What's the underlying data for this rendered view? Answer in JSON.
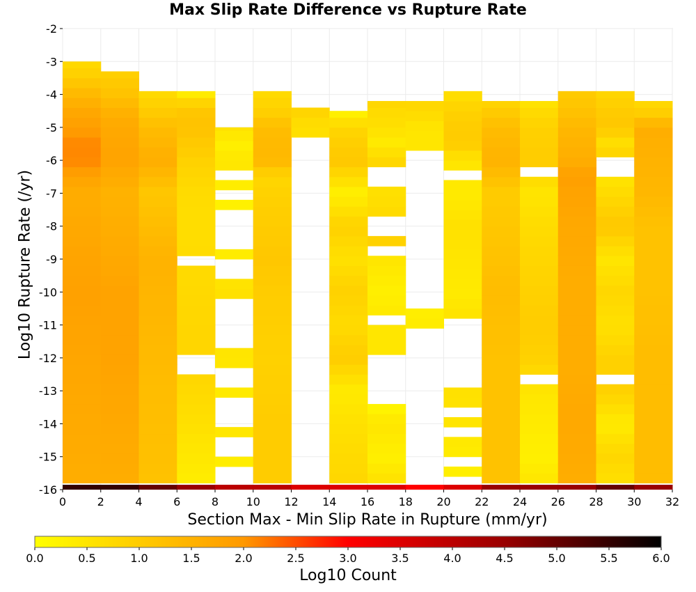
{
  "chart_data": {
    "type": "heatmap",
    "title": "Max Slip Rate Difference vs Rupture Rate",
    "xlabel": "Section Max - Min Slip Rate in Rupture (mm/yr)",
    "ylabel": "Log10 Rupture Rate (/yr)",
    "colorbar_label": "Log10 Count",
    "xlim": [
      0,
      32
    ],
    "ylim": [
      -16,
      -2
    ],
    "x_ticks": [
      "0",
      "2",
      "4",
      "6",
      "8",
      "10",
      "12",
      "14",
      "16",
      "18",
      "20",
      "22",
      "24",
      "26",
      "28",
      "30",
      "32"
    ],
    "y_ticks": [
      "-2",
      "-3",
      "-4",
      "-5",
      "-6",
      "-7",
      "-8",
      "-9",
      "-10",
      "-11",
      "-12",
      "-13",
      "-14",
      "-15",
      "-16"
    ],
    "colorbar_ticks": [
      "0.0",
      "0.5",
      "1.0",
      "1.5",
      "2.0",
      "2.5",
      "3.0",
      "3.5",
      "4.0",
      "4.5",
      "5.0",
      "5.5",
      "6.0"
    ],
    "colorbar_range": [
      0,
      6
    ],
    "x_bin_width": 2,
    "y_bin_width": 0.3,
    "bottom_row_y": -16,
    "bottom_row_values": [
      5.5,
      5.5,
      5.0,
      4.5,
      4.0,
      4.0,
      3.5,
      3.5,
      3.5,
      3.0,
      3.5,
      4.5,
      4.5,
      4.5,
      5.0,
      4.5
    ],
    "columns": [
      {
        "x": 0,
        "ymin": -15.8,
        "ymax": -3.0,
        "profile": [
          [
            -15.8,
            1.6
          ],
          [
            -13,
            1.7
          ],
          [
            -10,
            1.85
          ],
          [
            -8,
            1.7
          ],
          [
            -7,
            1.6
          ],
          [
            -6.5,
            1.8
          ],
          [
            -6,
            2.2
          ],
          [
            -5.5,
            2.2
          ],
          [
            -5,
            1.9
          ],
          [
            -4.5,
            1.7
          ],
          [
            -4,
            1.4
          ],
          [
            -3.5,
            1.0
          ],
          [
            -3.0,
            0.7
          ]
        ]
      },
      {
        "x": 2,
        "ymin": -15.8,
        "ymax": -3.3,
        "profile": [
          [
            -15.8,
            1.6
          ],
          [
            -12,
            1.8
          ],
          [
            -10,
            1.8
          ],
          [
            -8,
            1.6
          ],
          [
            -7,
            1.5
          ],
          [
            -6,
            1.8
          ],
          [
            -5,
            1.7
          ],
          [
            -4.5,
            1.5
          ],
          [
            -4,
            1.2
          ],
          [
            -3.3,
            0.9
          ]
        ]
      },
      {
        "x": 4,
        "ymin": -15.8,
        "ymax": -3.9,
        "profile": [
          [
            -15.8,
            1.2
          ],
          [
            -13,
            1.3
          ],
          [
            -11,
            1.4
          ],
          [
            -9,
            1.5
          ],
          [
            -8,
            1.3
          ],
          [
            -7,
            1.1
          ],
          [
            -6,
            1.6
          ],
          [
            -5,
            1.3
          ],
          [
            -4.5,
            1.0
          ],
          [
            -3.9,
            0.7
          ]
        ]
      },
      {
        "x": 6,
        "ymin": -15.8,
        "ymax": -3.9,
        "profile": [
          [
            -15.8,
            0.35
          ],
          [
            -14,
            0.6
          ],
          [
            -12.5,
            0.8
          ],
          [
            -11,
            0.8
          ],
          [
            -9,
            0.7
          ],
          [
            -8,
            0.65
          ],
          [
            -7,
            0.7
          ],
          [
            -6,
            0.9
          ],
          [
            -5,
            1.2
          ],
          [
            -4.5,
            1.1
          ],
          [
            -4.2,
            0.8
          ],
          [
            -3.9,
            0.2
          ]
        ],
        "gaps": [
          [
            -12.5,
            -11.9
          ],
          [
            -9.2,
            -8.9
          ]
        ]
      },
      {
        "x": 8,
        "ymin": -15.3,
        "ymax": -5.0,
        "profile": [
          [
            -15.3,
            0.3
          ],
          [
            -15,
            0.4
          ],
          [
            -14,
            0.5
          ],
          [
            -13,
            0.4
          ],
          [
            -12,
            0.5
          ],
          [
            -10,
            0.6
          ],
          [
            -9,
            0.4
          ],
          [
            -8,
            0.2
          ],
          [
            -7,
            0.3
          ],
          [
            -6,
            0.5
          ],
          [
            -5.5,
            0.3
          ],
          [
            -5,
            0.6
          ]
        ],
        "gaps": [
          [
            -15.0,
            -14.5
          ],
          [
            -14.2,
            -13.2
          ],
          [
            -12.9,
            -12.2
          ],
          [
            -11.8,
            -10.3
          ],
          [
            -10.0,
            -9.9
          ],
          [
            -9.6,
            -9.0
          ],
          [
            -8.7,
            -7.6
          ],
          [
            -7.3,
            -7.0
          ],
          [
            -6.7,
            -6.2
          ]
        ]
      },
      {
        "x": 10,
        "ymin": -15.8,
        "ymax": -3.9,
        "profile": [
          [
            -15.8,
            1.0
          ],
          [
            -14,
            1.0
          ],
          [
            -12,
            0.9
          ],
          [
            -10,
            1.0
          ],
          [
            -9,
            1.1
          ],
          [
            -8,
            1.0
          ],
          [
            -7,
            0.9
          ],
          [
            -6.5,
            0.8
          ],
          [
            -6,
            1.4
          ],
          [
            -5,
            1.3
          ],
          [
            -4.5,
            0.9
          ],
          [
            -3.9,
            0.7
          ]
        ]
      },
      {
        "x": 12,
        "ymin": -5.3,
        "ymax": -4.4,
        "profile": [
          [
            -5.3,
            0.6
          ],
          [
            -4.8,
            0.7
          ],
          [
            -4.4,
            0.9
          ]
        ]
      },
      {
        "x": 14,
        "ymin": -15.8,
        "ymax": -4.5,
        "profile": [
          [
            -15.8,
            0.8
          ],
          [
            -14,
            0.6
          ],
          [
            -13,
            0.4
          ],
          [
            -12,
            1.0
          ],
          [
            -11,
            0.7
          ],
          [
            -10,
            0.9
          ],
          [
            -9,
            0.6
          ],
          [
            -8,
            0.9
          ],
          [
            -7,
            0.3
          ],
          [
            -6,
            1.1
          ],
          [
            -5,
            0.8
          ],
          [
            -4.5,
            0.2
          ]
        ],
        "gaps": [
          [
            -9.9,
            -9.8
          ]
        ]
      },
      {
        "x": 16,
        "ymin": -15.8,
        "ymax": -4.2,
        "profile": [
          [
            -15.8,
            0.6
          ],
          [
            -15,
            0.3
          ],
          [
            -14,
            0.5
          ],
          [
            -13.5,
            0.2
          ],
          [
            -12,
            0.5
          ],
          [
            -11,
            0.5
          ],
          [
            -10,
            0.3
          ],
          [
            -9,
            0.5
          ],
          [
            -8.5,
            0.9
          ],
          [
            -7,
            0.6
          ],
          [
            -6,
            0.8
          ],
          [
            -5.5,
            0.4
          ],
          [
            -5,
            0.6
          ],
          [
            -4.2,
            0.8
          ]
        ],
        "gaps": [
          [
            -13.5,
            -11.9
          ],
          [
            -10.9,
            -10.8
          ],
          [
            -9.0,
            -8.6
          ],
          [
            -8.3,
            -7.6
          ],
          [
            -6.7,
            -6.2
          ]
        ]
      },
      {
        "x": 18,
        "ymin": -11.1,
        "ymax": -4.2,
        "profile": [
          [
            -11.1,
            0.4
          ],
          [
            -10.5,
            0.3
          ],
          [
            -5.6,
            0.5
          ],
          [
            -5,
            0.5
          ],
          [
            -4.6,
            0.7
          ],
          [
            -4.2,
            0.8
          ]
        ],
        "gaps": [
          [
            -10.4,
            -5.6
          ]
        ]
      },
      {
        "x": 20,
        "ymin": -15.6,
        "ymax": -3.9,
        "profile": [
          [
            -15.6,
            0.3
          ],
          [
            -14,
            0.5
          ],
          [
            -13,
            0.6
          ],
          [
            -12,
            0.6
          ],
          [
            -11,
            0.6
          ],
          [
            -10,
            0.4
          ],
          [
            -9,
            0.5
          ],
          [
            -8,
            0.6
          ],
          [
            -7,
            0.4
          ],
          [
            -6,
            0.5
          ],
          [
            -5.5,
            1.0
          ],
          [
            -5,
            1.0
          ],
          [
            -4.5,
            0.9
          ],
          [
            -3.9,
            0.6
          ]
        ],
        "gaps": [
          [
            -15.3,
            -15.0
          ],
          [
            -14.4,
            -14.2
          ],
          [
            -13.9,
            -13.5
          ],
          [
            -12.9,
            -10.9
          ],
          [
            -9.9,
            -9.8
          ],
          [
            -6.7,
            -6.2
          ]
        ]
      },
      {
        "x": 22,
        "ymin": -15.8,
        "ymax": -4.2,
        "profile": [
          [
            -15.8,
            1.2
          ],
          [
            -14,
            1.2
          ],
          [
            -12,
            1.2
          ],
          [
            -10,
            1.3
          ],
          [
            -8,
            1.1
          ],
          [
            -7,
            1.0
          ],
          [
            -6,
            1.5
          ],
          [
            -5,
            1.3
          ],
          [
            -4.5,
            1.0
          ],
          [
            -4.2,
            0.8
          ]
        ]
      },
      {
        "x": 24,
        "ymin": -15.8,
        "ymax": -4.2,
        "profile": [
          [
            -15.8,
            0.5
          ],
          [
            -15,
            0.3
          ],
          [
            -14,
            0.4
          ],
          [
            -13,
            0.5
          ],
          [
            -12,
            0.9
          ],
          [
            -11,
            1.0
          ],
          [
            -10,
            0.9
          ],
          [
            -9,
            0.8
          ],
          [
            -8,
            0.7
          ],
          [
            -7,
            0.5
          ],
          [
            -6,
            1.0
          ],
          [
            -5,
            0.9
          ],
          [
            -4.5,
            0.7
          ],
          [
            -4.2,
            0.5
          ]
        ],
        "gaps": [
          [
            -12.9,
            -12.6
          ],
          [
            -6.5,
            -6.2
          ],
          [
            -5.9,
            -5.8
          ]
        ]
      },
      {
        "x": 26,
        "ymin": -15.8,
        "ymax": -3.9,
        "profile": [
          [
            -15.8,
            1.6
          ],
          [
            -14,
            1.7
          ],
          [
            -12,
            1.6
          ],
          [
            -10,
            1.6
          ],
          [
            -8,
            1.7
          ],
          [
            -7,
            1.8
          ],
          [
            -6.5,
            1.9
          ],
          [
            -6,
            1.6
          ],
          [
            -5,
            1.4
          ],
          [
            -4.5,
            1.2
          ],
          [
            -3.9,
            1.0
          ]
        ]
      },
      {
        "x": 28,
        "ymin": -15.8,
        "ymax": -3.9,
        "profile": [
          [
            -15.8,
            0.6
          ],
          [
            -15,
            0.8
          ],
          [
            -14,
            0.4
          ],
          [
            -13,
            0.9
          ],
          [
            -12,
            0.9
          ],
          [
            -11,
            0.6
          ],
          [
            -10,
            0.8
          ],
          [
            -9,
            0.5
          ],
          [
            -8,
            1.1
          ],
          [
            -7,
            0.7
          ],
          [
            -6.5,
            0.5
          ],
          [
            -6,
            1.0
          ],
          [
            -5.5,
            0.6
          ],
          [
            -5,
            1.1
          ],
          [
            -4.5,
            1.0
          ],
          [
            -3.9,
            0.8
          ]
        ],
        "gaps": [
          [
            -12.9,
            -12.6
          ],
          [
            -6.5,
            -5.9
          ]
        ]
      },
      {
        "x": 30,
        "ymin": -15.8,
        "ymax": -4.2,
        "profile": [
          [
            -15.8,
            1.3
          ],
          [
            -14,
            1.3
          ],
          [
            -12,
            1.3
          ],
          [
            -10,
            1.2
          ],
          [
            -8,
            1.2
          ],
          [
            -7,
            1.4
          ],
          [
            -6,
            1.5
          ],
          [
            -5,
            1.6
          ],
          [
            -4.6,
            1.0
          ],
          [
            -4.2,
            0.7
          ]
        ]
      }
    ]
  }
}
